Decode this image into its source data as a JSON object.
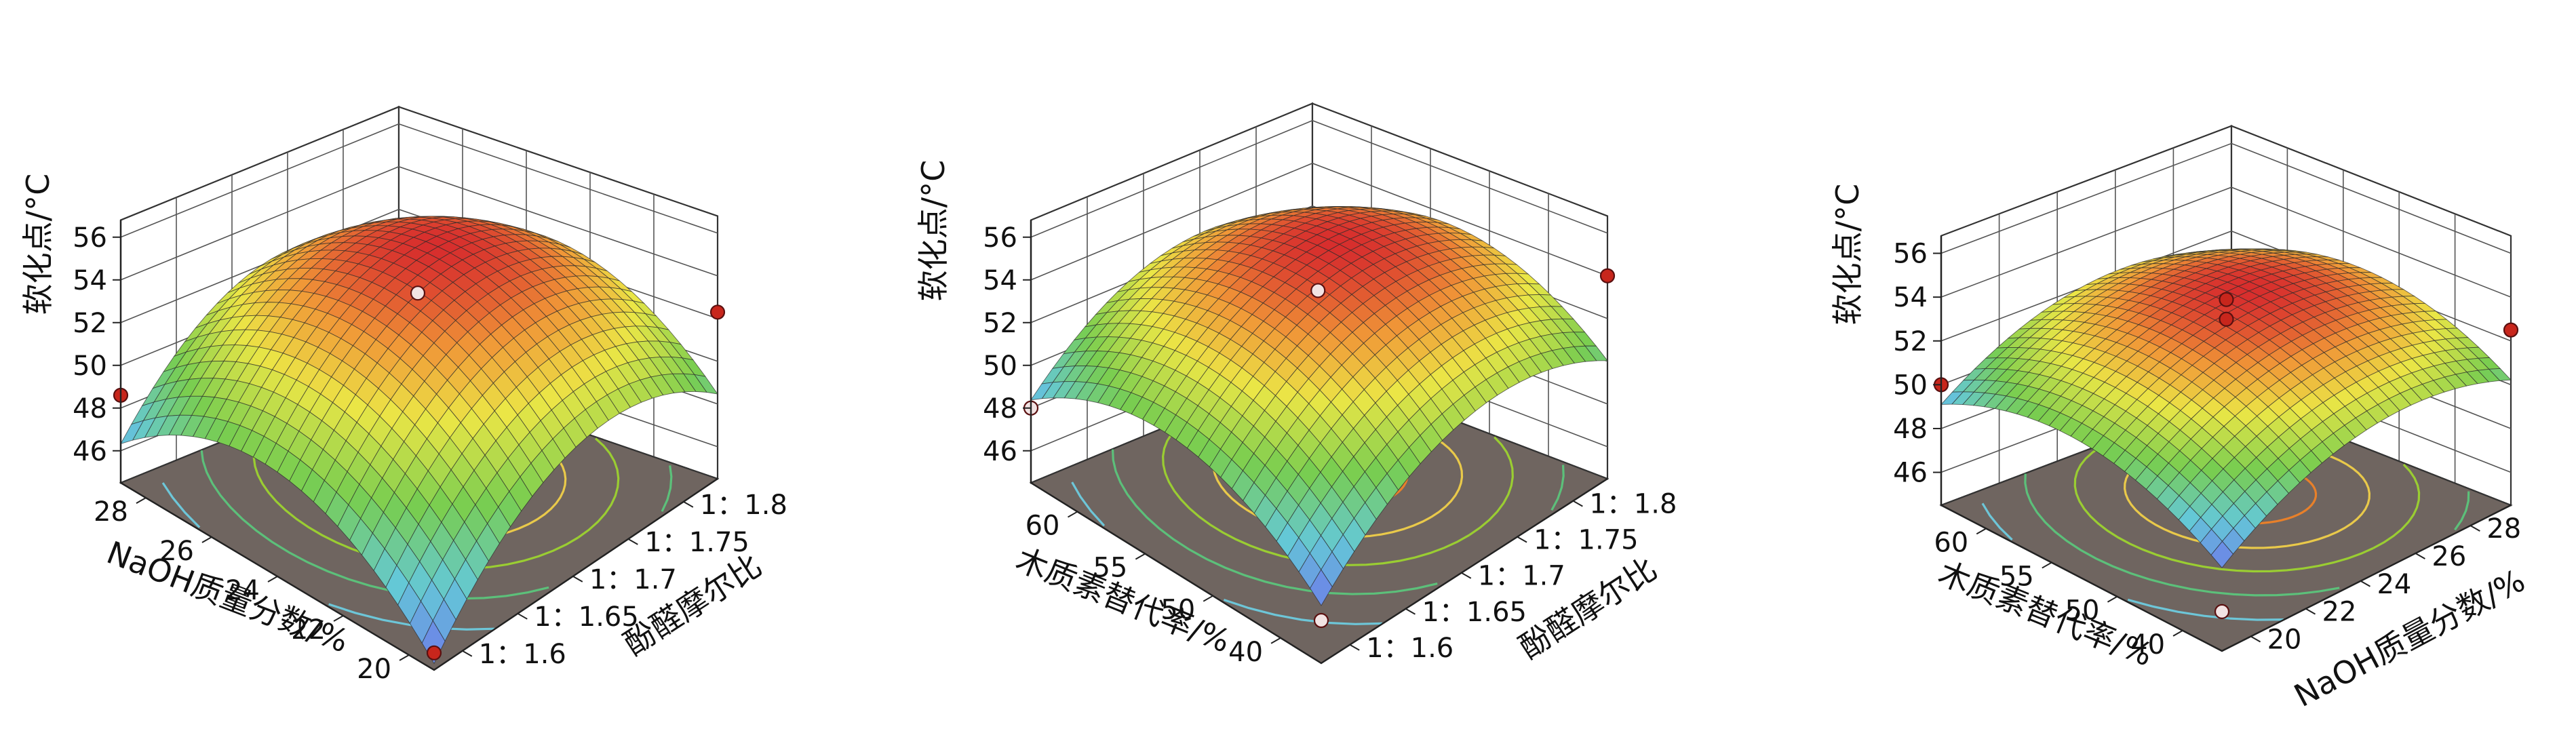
{
  "chart_data": [
    {
      "type": "surface",
      "zlabel": "软化点/°C",
      "xlabel": "NaOH质量分数/%",
      "ylabel": "酚醛摩尔比",
      "x_ticks": [
        "28",
        "26",
        "24",
        "22",
        "20"
      ],
      "y_ticks": [
        "1：1.8",
        "1：1.75",
        "1：1.7",
        "1：1.65",
        "1：1.6"
      ],
      "z_ticks": [
        "56",
        "54",
        "52",
        "50",
        "48",
        "46"
      ],
      "zlim": [
        44.5,
        56.5
      ],
      "surface": {
        "z_center": 55.3,
        "z_min_corner": 44.8,
        "x_range": [
          20,
          28
        ],
        "y_range": [
          1.6,
          1.8
        ]
      },
      "points": [
        {
          "x": 24,
          "y": 1.7,
          "z": 54.2
        },
        {
          "x": 28,
          "y": 1.6,
          "z": 48.6
        },
        {
          "x": 20,
          "y": 1.8,
          "z": 52.3
        },
        {
          "x": 20,
          "y": 1.6,
          "z": 45.3
        }
      ]
    },
    {
      "type": "surface",
      "zlabel": "软化点/°C",
      "xlabel": "木质素替代率/%",
      "ylabel": "酚醛摩尔比",
      "x_ticks": [
        "60",
        "55",
        "50",
        "40"
      ],
      "y_ticks": [
        "1：1.8",
        "1：1.75",
        "1：1.7",
        "1：1.65",
        "1：1.6"
      ],
      "z_ticks": [
        "56",
        "54",
        "52",
        "50",
        "48",
        "46"
      ],
      "zlim": [
        44.5,
        56.5
      ],
      "surface": {
        "z_center": 55.3,
        "z_min_corner": 47.2,
        "x_range": [
          40,
          60
        ],
        "y_range": [
          1.6,
          1.8
        ]
      },
      "points": [
        {
          "x": 50,
          "y": 1.7,
          "z": 54.2
        },
        {
          "x": 60,
          "y": 1.6,
          "z": 48.0
        },
        {
          "x": 40,
          "y": 1.8,
          "z": 54.0
        },
        {
          "x": 40,
          "y": 1.6,
          "z": 46.5
        }
      ]
    },
    {
      "type": "surface",
      "zlabel": "软化点/°C",
      "xlabel": "木质素替代率/%",
      "ylabel": "NaOH质量分数/%",
      "x_ticks": [
        "60",
        "55",
        "50",
        "40"
      ],
      "y_ticks": [
        "28",
        "26",
        "24",
        "22",
        "20"
      ],
      "z_ticks": [
        "56",
        "54",
        "52",
        "50",
        "48",
        "46"
      ],
      "zlim": [
        44.5,
        56.5
      ],
      "surface": {
        "z_center": 53.8,
        "z_min_corner": 48.3,
        "x_range": [
          40,
          60
        ],
        "y_range": [
          20,
          28
        ]
      },
      "points": [
        {
          "x": 50,
          "y": 24,
          "z": 54.3
        },
        {
          "x": 50,
          "y": 24,
          "z": 53.4
        },
        {
          "x": 60,
          "y": 20,
          "z": 50.0
        },
        {
          "x": 40,
          "y": 28,
          "z": 52.5
        },
        {
          "x": 40,
          "y": 20,
          "z": 46.3
        }
      ]
    }
  ]
}
